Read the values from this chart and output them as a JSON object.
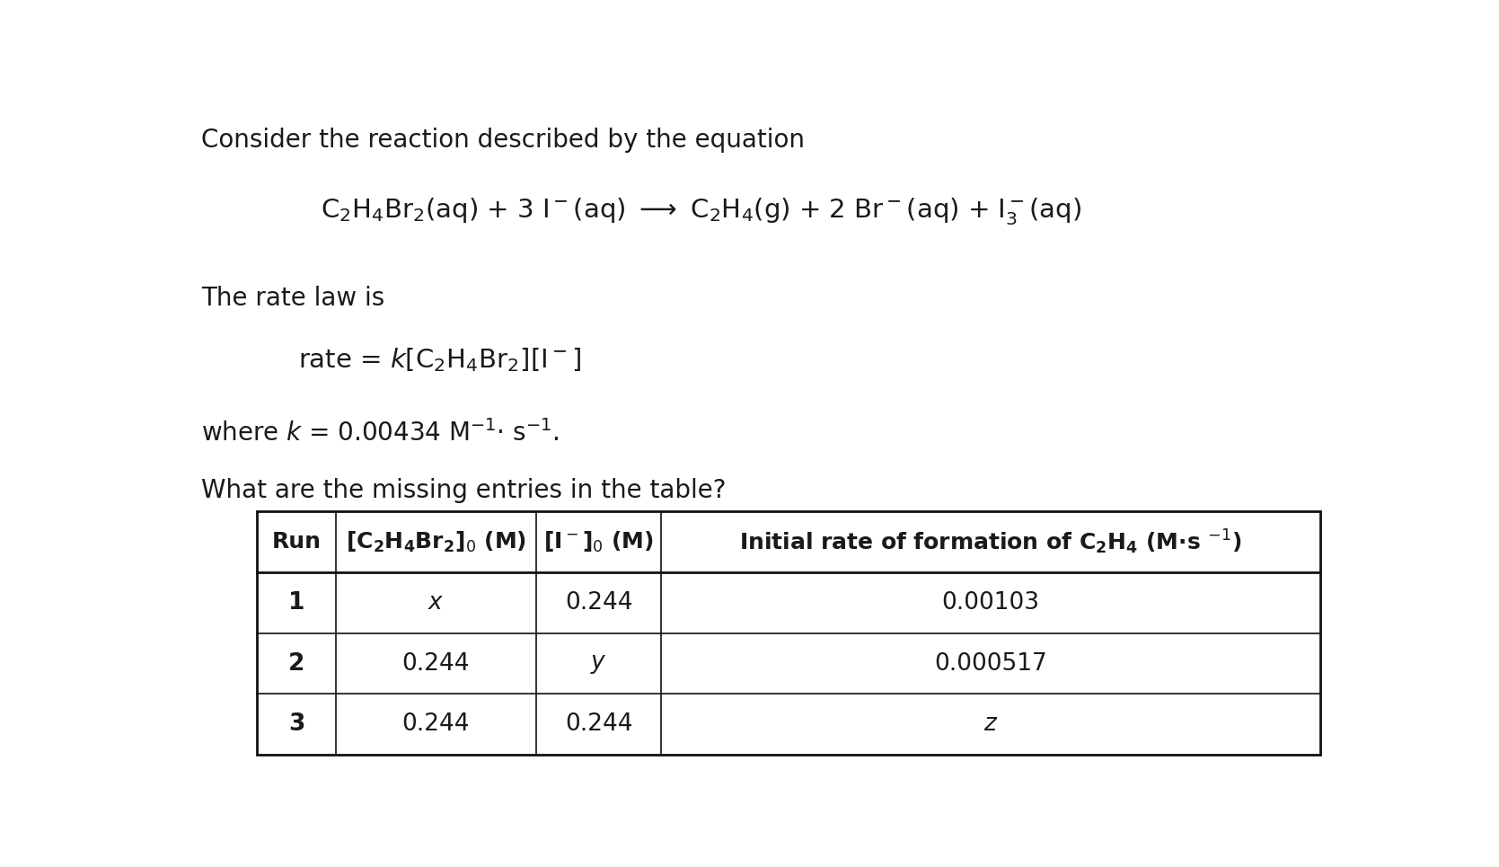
{
  "bg_color": "#ffffff",
  "text_color": "#1a1a1a",
  "figsize": [
    16.69,
    9.65
  ],
  "dpi": 100,
  "intro_text": "Consider the reaction described by the equation",
  "rate_law_intro": "The rate law is",
  "question": "What are the missing entries in the table?",
  "table_data": [
    [
      "1",
      "x",
      "0.244",
      "0.00103"
    ],
    [
      "2",
      "0.244",
      "y",
      "0.000517"
    ],
    [
      "3",
      "0.244",
      "0.244",
      "z"
    ]
  ]
}
